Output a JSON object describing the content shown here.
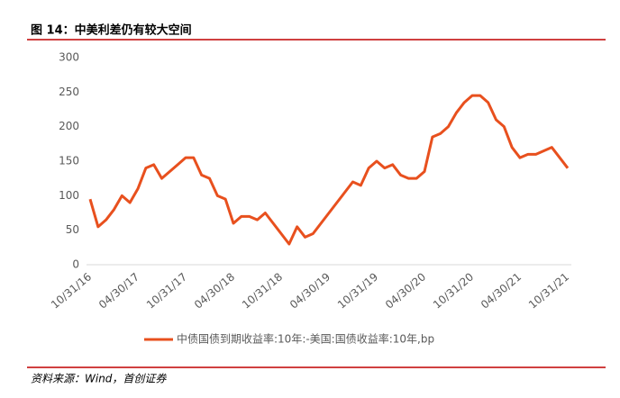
{
  "chart_data": {
    "type": "line",
    "title": "图 14：中美利差仍有较大空间",
    "source": "资料来源：Wind，首创证券",
    "categories": [
      "10/31/16",
      null,
      null,
      null,
      null,
      null,
      "04/30/17",
      null,
      null,
      null,
      null,
      null,
      "10/31/17",
      null,
      null,
      null,
      null,
      null,
      "04/30/18",
      null,
      null,
      null,
      null,
      null,
      "10/31/18",
      null,
      null,
      null,
      null,
      null,
      "04/30/19",
      null,
      null,
      null,
      null,
      null,
      "10/31/19",
      null,
      null,
      null,
      null,
      null,
      "04/30/20",
      null,
      null,
      null,
      null,
      null,
      "10/31/20",
      null,
      null,
      null,
      null,
      null,
      "04/30/21",
      null,
      null,
      null,
      null,
      null,
      "10/31/21"
    ],
    "series": [
      {
        "name": "中债国债到期收益率:10年:-美国:国债收益率:10年,bp",
        "color": "#e8501e",
        "values": [
          95,
          55,
          65,
          80,
          100,
          90,
          110,
          140,
          145,
          125,
          135,
          145,
          155,
          155,
          130,
          125,
          100,
          95,
          60,
          70,
          70,
          65,
          75,
          60,
          45,
          30,
          55,
          40,
          45,
          60,
          75,
          90,
          105,
          120,
          115,
          140,
          150,
          140,
          145,
          130,
          125,
          125,
          135,
          185,
          190,
          200,
          220,
          235,
          245,
          245,
          235,
          210,
          200,
          170,
          155,
          160,
          160,
          165,
          170,
          155,
          140
        ]
      }
    ],
    "ylim": [
      0,
      300
    ],
    "yticks": [
      0,
      50,
      100,
      150,
      200,
      250,
      300
    ],
    "grid": false,
    "legend": "bottom"
  }
}
